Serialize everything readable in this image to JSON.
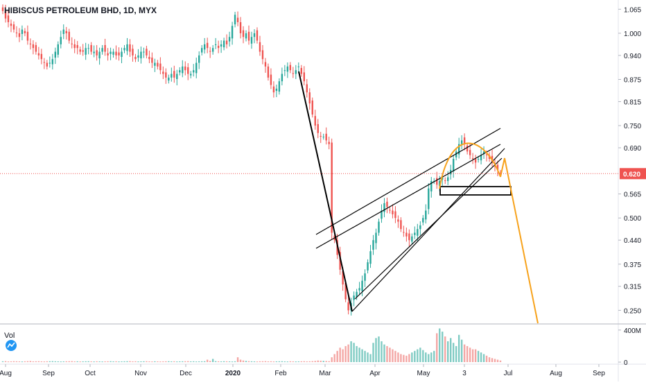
{
  "chart_data": {
    "type": "candlestick",
    "title": "HIBISCUS PETROLEUM BHD, 1D, MYX",
    "y_ticks": [
      "1.065",
      "1.000",
      "0.940",
      "0.875",
      "0.815",
      "0.750",
      "0.690",
      "0.620",
      "0.565",
      "0.500",
      "0.440",
      "0.375",
      "0.315",
      "0.250"
    ],
    "x_ticks": [
      "Aug",
      "Sep",
      "Oct",
      "Nov",
      "Dec",
      "2020",
      "Feb",
      "Mar",
      "Apr",
      "May",
      "3",
      "Jul",
      "Aug",
      "Sep"
    ],
    "current_price": "0.620",
    "volume_label": "Vol",
    "volume_ticks": [
      "400M",
      "0"
    ],
    "colors": {
      "up": "#26a69a",
      "down": "#ef5350",
      "volume_up": "#7fcbc3",
      "volume_down": "#f4a6a4",
      "current_price_line": "#ef5350",
      "trendline": "#000000",
      "projection": "#f7a21b",
      "axis_text": "#131722"
    },
    "price_series": [
      1.06,
      1.04,
      1.03,
      1.02,
      1.01,
      1.0,
      0.99,
      1.01,
      1.0,
      0.98,
      0.97,
      0.96,
      0.95,
      0.94,
      0.93,
      0.92,
      0.91,
      0.92,
      0.93,
      0.95,
      0.97,
      0.99,
      1.01,
      1.0,
      0.98,
      0.97,
      0.96,
      0.96,
      0.95,
      0.95,
      0.96,
      0.96,
      0.95,
      0.95,
      0.94,
      0.95,
      0.96,
      0.95,
      0.94,
      0.95,
      0.95,
      0.94,
      0.94,
      0.95,
      0.96,
      0.97,
      0.95,
      0.94,
      0.93,
      0.94,
      0.95,
      0.95,
      0.94,
      0.93,
      0.92,
      0.92,
      0.91,
      0.9,
      0.89,
      0.88,
      0.88,
      0.89,
      0.88,
      0.89,
      0.9,
      0.91,
      0.9,
      0.89,
      0.89,
      0.9,
      0.92,
      0.94,
      0.96,
      0.97,
      0.96,
      0.95,
      0.96,
      0.97,
      0.96,
      0.97,
      0.98,
      0.97,
      0.99,
      1.02,
      1.05,
      1.03,
      1.0,
      0.99,
      1.0,
      0.98,
      0.99,
      1.0,
      0.98,
      0.95,
      0.93,
      0.91,
      0.88,
      0.86,
      0.84,
      0.85,
      0.87,
      0.89,
      0.9,
      0.91,
      0.9,
      0.89,
      0.9,
      0.91,
      0.89,
      0.87,
      0.84,
      0.81,
      0.78,
      0.75,
      0.73,
      0.72,
      0.72,
      0.71,
      0.7,
      0.46,
      0.44,
      0.4,
      0.36,
      0.32,
      0.28,
      0.25,
      0.27,
      0.29,
      0.3,
      0.31,
      0.33,
      0.35,
      0.38,
      0.41,
      0.44,
      0.46,
      0.49,
      0.52,
      0.54,
      0.53,
      0.52,
      0.51,
      0.5,
      0.49,
      0.47,
      0.46,
      0.45,
      0.44,
      0.45,
      0.46,
      0.47,
      0.48,
      0.5,
      0.52,
      0.58,
      0.6,
      0.6,
      0.59,
      0.6,
      0.61,
      0.6,
      0.61,
      0.63,
      0.66,
      0.68,
      0.7,
      0.71,
      0.7,
      0.68,
      0.67,
      0.66,
      0.65,
      0.66,
      0.67,
      0.68,
      0.67,
      0.66,
      0.65,
      0.64,
      0.63,
      0.62
    ],
    "volume_series": [
      10,
      12,
      8,
      9,
      11,
      10,
      9,
      8,
      10,
      12,
      14,
      9,
      10,
      11,
      9,
      8,
      10,
      11,
      12,
      10,
      9,
      8,
      9,
      10,
      11,
      12,
      9,
      10,
      8,
      9,
      10,
      11,
      9,
      8,
      10,
      9,
      8,
      9,
      10,
      11,
      9,
      10,
      8,
      9,
      10,
      11,
      12,
      9,
      10,
      8,
      9,
      10,
      11,
      9,
      8,
      10,
      9,
      8,
      9,
      10,
      11,
      9,
      10,
      8,
      9,
      10,
      11,
      12,
      9,
      10,
      8,
      9,
      10,
      11,
      30,
      15,
      40,
      12,
      10,
      9,
      11,
      10,
      9,
      8,
      10,
      60,
      30,
      20,
      15,
      12,
      10,
      9,
      8,
      10,
      11,
      12,
      9,
      10,
      8,
      9,
      10,
      11,
      9,
      8,
      10,
      9,
      8,
      9,
      10,
      11,
      9,
      10,
      12,
      15,
      20,
      18,
      16,
      14,
      12,
      60,
      100,
      140,
      180,
      160,
      200,
      220,
      260,
      240,
      200,
      180,
      160,
      140,
      120,
      100,
      240,
      300,
      320,
      260,
      220,
      200,
      180,
      160,
      140,
      120,
      100,
      90,
      80,
      100,
      120,
      140,
      160,
      180,
      150,
      120,
      100,
      120,
      140,
      360,
      420,
      380,
      320,
      260,
      300,
      240,
      200,
      340,
      280,
      220,
      200,
      180,
      160,
      160,
      140,
      120,
      100,
      80,
      60,
      50,
      40,
      30,
      20
    ]
  }
}
